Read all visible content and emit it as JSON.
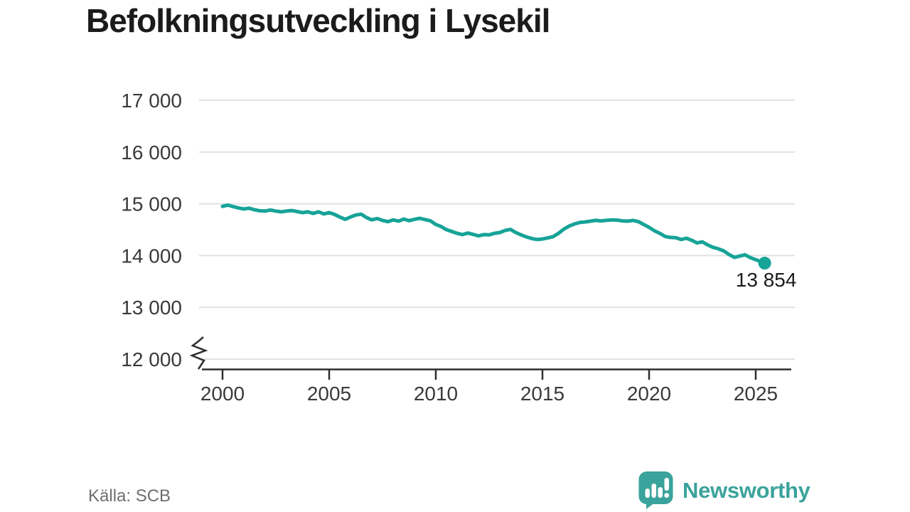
{
  "title": "Befolkningsutveckling i Lysekil",
  "source": "Källa: SCB",
  "branding": {
    "name": "Newsworthy",
    "icon": "newsworthy-speech-bubble-chart-icon",
    "color": "#3aa39b"
  },
  "chart_data": {
    "type": "line",
    "title": "Befolkningsutveckling i Lysekil",
    "series_name": "Befolkning i Lysekil",
    "line_color": "#17a398",
    "grid": "horizontal",
    "axis_break_bottom_left": true,
    "xlim": [
      1999,
      2027
    ],
    "ylim": [
      12000,
      17250
    ],
    "x_start": 2000,
    "x_step": 0.25,
    "x_end": 2025.42,
    "y_ticks": {
      "values": [
        17000,
        16000,
        15000,
        14000,
        13000,
        12000
      ],
      "labels": [
        "17 000",
        "16 000",
        "15 000",
        "14 000",
        "13 000",
        "12 000"
      ]
    },
    "x_ticks": {
      "values": [
        2000,
        2005,
        2010,
        2015,
        2020,
        2025
      ],
      "labels": [
        "2000",
        "2005",
        "2010",
        "2015",
        "2020",
        "2025"
      ]
    },
    "end_label": "13 854",
    "end_value": 13854,
    "values": [
      14950,
      14975,
      14945,
      14920,
      14900,
      14915,
      14885,
      14865,
      14860,
      14880,
      14860,
      14845,
      14860,
      14870,
      14850,
      14830,
      14845,
      14815,
      14845,
      14805,
      14830,
      14795,
      14745,
      14700,
      14745,
      14785,
      14800,
      14735,
      14690,
      14715,
      14680,
      14655,
      14690,
      14665,
      14705,
      14675,
      14700,
      14720,
      14695,
      14670,
      14600,
      14560,
      14500,
      14465,
      14430,
      14405,
      14435,
      14410,
      14380,
      14405,
      14400,
      14430,
      14445,
      14485,
      14505,
      14445,
      14400,
      14360,
      14330,
      14310,
      14320,
      14340,
      14365,
      14430,
      14510,
      14570,
      14610,
      14640,
      14650,
      14665,
      14680,
      14670,
      14680,
      14690,
      14685,
      14670,
      14665,
      14680,
      14655,
      14600,
      14545,
      14480,
      14430,
      14370,
      14350,
      14345,
      14310,
      14335,
      14295,
      14245,
      14265,
      14205,
      14160,
      14130,
      14090,
      14020,
      13965,
      13990,
      14015,
      13960,
      13920,
      13880,
      13854
    ]
  }
}
